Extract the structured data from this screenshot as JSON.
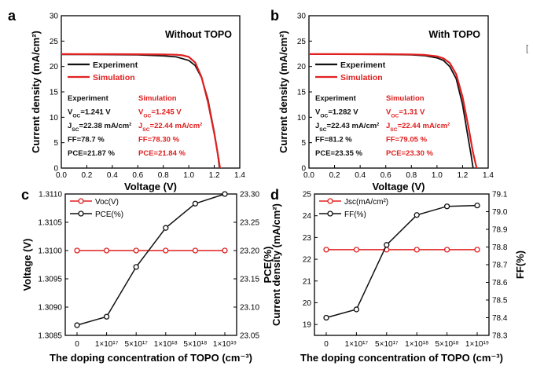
{
  "colors": {
    "black": "#111111",
    "red": "#e02020"
  },
  "stray_mark": "[",
  "chart_data": [
    {
      "id": "a",
      "type": "line",
      "panel_label": "a",
      "title": "Without TOPO",
      "xlabel": "Voltage (V)",
      "ylabel": "Current density (mA/cm²)",
      "xlim": [
        0.0,
        1.4
      ],
      "ylim": [
        0,
        30
      ],
      "xticks": [
        "0.0",
        "0.2",
        "0.4",
        "0.6",
        "0.8",
        "1.0",
        "1.2",
        "1.4"
      ],
      "yticks": [
        "0",
        "5",
        "10",
        "15",
        "20",
        "25",
        "30"
      ],
      "legend_position": "upper-left",
      "series": [
        {
          "name": "Experiment",
          "color": "#111111",
          "x": [
            0,
            0.2,
            0.4,
            0.6,
            0.8,
            0.9,
            1.0,
            1.05,
            1.1,
            1.15,
            1.2,
            1.225,
            1.241
          ],
          "y": [
            22.38,
            22.36,
            22.33,
            22.28,
            22.1,
            21.9,
            21.2,
            20.2,
            17.8,
            13.5,
            7.0,
            3.2,
            0
          ]
        },
        {
          "name": "Simulation",
          "color": "#e02020",
          "x": [
            0,
            0.2,
            0.4,
            0.6,
            0.8,
            0.9,
            0.95,
            1.0,
            1.05,
            1.1,
            1.15,
            1.2,
            1.225,
            1.245
          ],
          "y": [
            22.44,
            22.43,
            22.42,
            22.41,
            22.38,
            22.32,
            22.2,
            21.9,
            20.8,
            17.9,
            13.0,
            6.8,
            3.2,
            0
          ]
        }
      ],
      "annotations": {
        "experiment": [
          "Experiment",
          "V_OC=1.241 V",
          "J_SC=22.38 mA/cm²",
          "FF=78.7 %",
          "PCE=21.87 %"
        ],
        "simulation": [
          "Simulation",
          "V_OC=1.245 V",
          "J_SC=22.44 mA/cm²",
          "FF=78.30 %",
          "PCE=21.84 %"
        ]
      }
    },
    {
      "id": "b",
      "type": "line",
      "panel_label": "b",
      "title": "With TOPO",
      "xlabel": "Voltage (V)",
      "ylabel": "Current density (mA/cm²)",
      "xlim": [
        0.0,
        1.4
      ],
      "ylim": [
        0,
        30
      ],
      "xticks": [
        "0.0",
        "0.2",
        "0.4",
        "0.6",
        "0.8",
        "1.0",
        "1.2",
        "1.4"
      ],
      "yticks": [
        "0",
        "5",
        "10",
        "15",
        "20",
        "25",
        "30"
      ],
      "legend_position": "upper-left",
      "series": [
        {
          "name": "Experiment",
          "color": "#111111",
          "x": [
            0,
            0.2,
            0.4,
            0.6,
            0.8,
            0.9,
            1.0,
            1.05,
            1.1,
            1.15,
            1.2,
            1.24,
            1.265,
            1.282
          ],
          "y": [
            22.43,
            22.42,
            22.41,
            22.38,
            22.3,
            22.15,
            21.7,
            21.2,
            20.0,
            17.6,
            12.5,
            6.5,
            2.8,
            0
          ]
        },
        {
          "name": "Simulation",
          "color": "#e02020",
          "x": [
            0,
            0.2,
            0.4,
            0.6,
            0.8,
            0.9,
            1.0,
            1.05,
            1.1,
            1.15,
            1.2,
            1.25,
            1.28,
            1.31
          ],
          "y": [
            22.44,
            22.44,
            22.43,
            22.42,
            22.38,
            22.3,
            22.0,
            21.6,
            20.7,
            18.5,
            14.0,
            7.5,
            3.2,
            0
          ]
        }
      ],
      "annotations": {
        "experiment": [
          "Experiment",
          "V_OC=1.282 V",
          "J_SC=22.43 mA/cm²",
          "FF=81.2 %",
          "PCE=23.35 %"
        ],
        "simulation": [
          "Simulation",
          "V_OC=1.31 V",
          "J_SC=22.44 mA/cm²",
          "FF=79.05 %",
          "PCE=23.30 %"
        ]
      }
    },
    {
      "id": "c",
      "type": "line",
      "panel_label": "c",
      "xlabel": "The doping concentration of TOPO (cm⁻³)",
      "ylabel_left": "Voltage (V)",
      "ylabel_right": "PCE(%)",
      "categories": [
        "0",
        "1×10¹⁷",
        "5×10¹⁷",
        "1×10¹⁸",
        "5×10¹⁸",
        "1×10¹⁹"
      ],
      "ylim_left": [
        1.3085,
        1.311
      ],
      "yticks_left": [
        "1.3085",
        "1.3090",
        "1.3095",
        "1.3100",
        "1.3105",
        "1.3110"
      ],
      "ylim_right": [
        23.05,
        23.3
      ],
      "yticks_right": [
        "23.05",
        "23.10",
        "23.15",
        "23.20",
        "23.25",
        "23.30"
      ],
      "legend_position": "upper-left",
      "series": [
        {
          "name": "Voc(V)",
          "color": "#e02020",
          "axis": "left",
          "values": [
            1.31,
            1.31,
            1.31,
            1.31,
            1.31,
            1.31
          ]
        },
        {
          "name": "PCE(%)",
          "color": "#111111",
          "axis": "right",
          "values": [
            23.068,
            23.083,
            23.171,
            23.24,
            23.283,
            23.3
          ]
        }
      ]
    },
    {
      "id": "d",
      "type": "line",
      "panel_label": "d",
      "xlabel": "The doping concentration of TOPO (cm⁻³)",
      "ylabel_left": "Current density (mA/cm²)",
      "ylabel_right": "FF(%)",
      "categories": [
        "0",
        "1×10¹⁷",
        "5×10¹⁷",
        "1×10¹⁸",
        "5×10¹⁸",
        "1×10¹⁹"
      ],
      "ylim_left": [
        18.5,
        25
      ],
      "yticks_left": [
        "19",
        "20",
        "21",
        "22",
        "23",
        "24",
        "25"
      ],
      "ylim_right": [
        78.3,
        79.1
      ],
      "yticks_right": [
        "78.3",
        "78.4",
        "78.5",
        "78.6",
        "78.7",
        "78.8",
        "78.9",
        "79.0",
        "79.1"
      ],
      "legend_position": "upper-left",
      "series": [
        {
          "name": "Jsc(mA/cm²)",
          "color": "#e02020",
          "axis": "left",
          "values": [
            22.44,
            22.44,
            22.44,
            22.44,
            22.44,
            22.44
          ]
        },
        {
          "name": "FF(%)",
          "color": "#111111",
          "axis": "right",
          "values": [
            78.4,
            78.447,
            78.812,
            78.981,
            79.03,
            79.035
          ]
        }
      ]
    }
  ]
}
